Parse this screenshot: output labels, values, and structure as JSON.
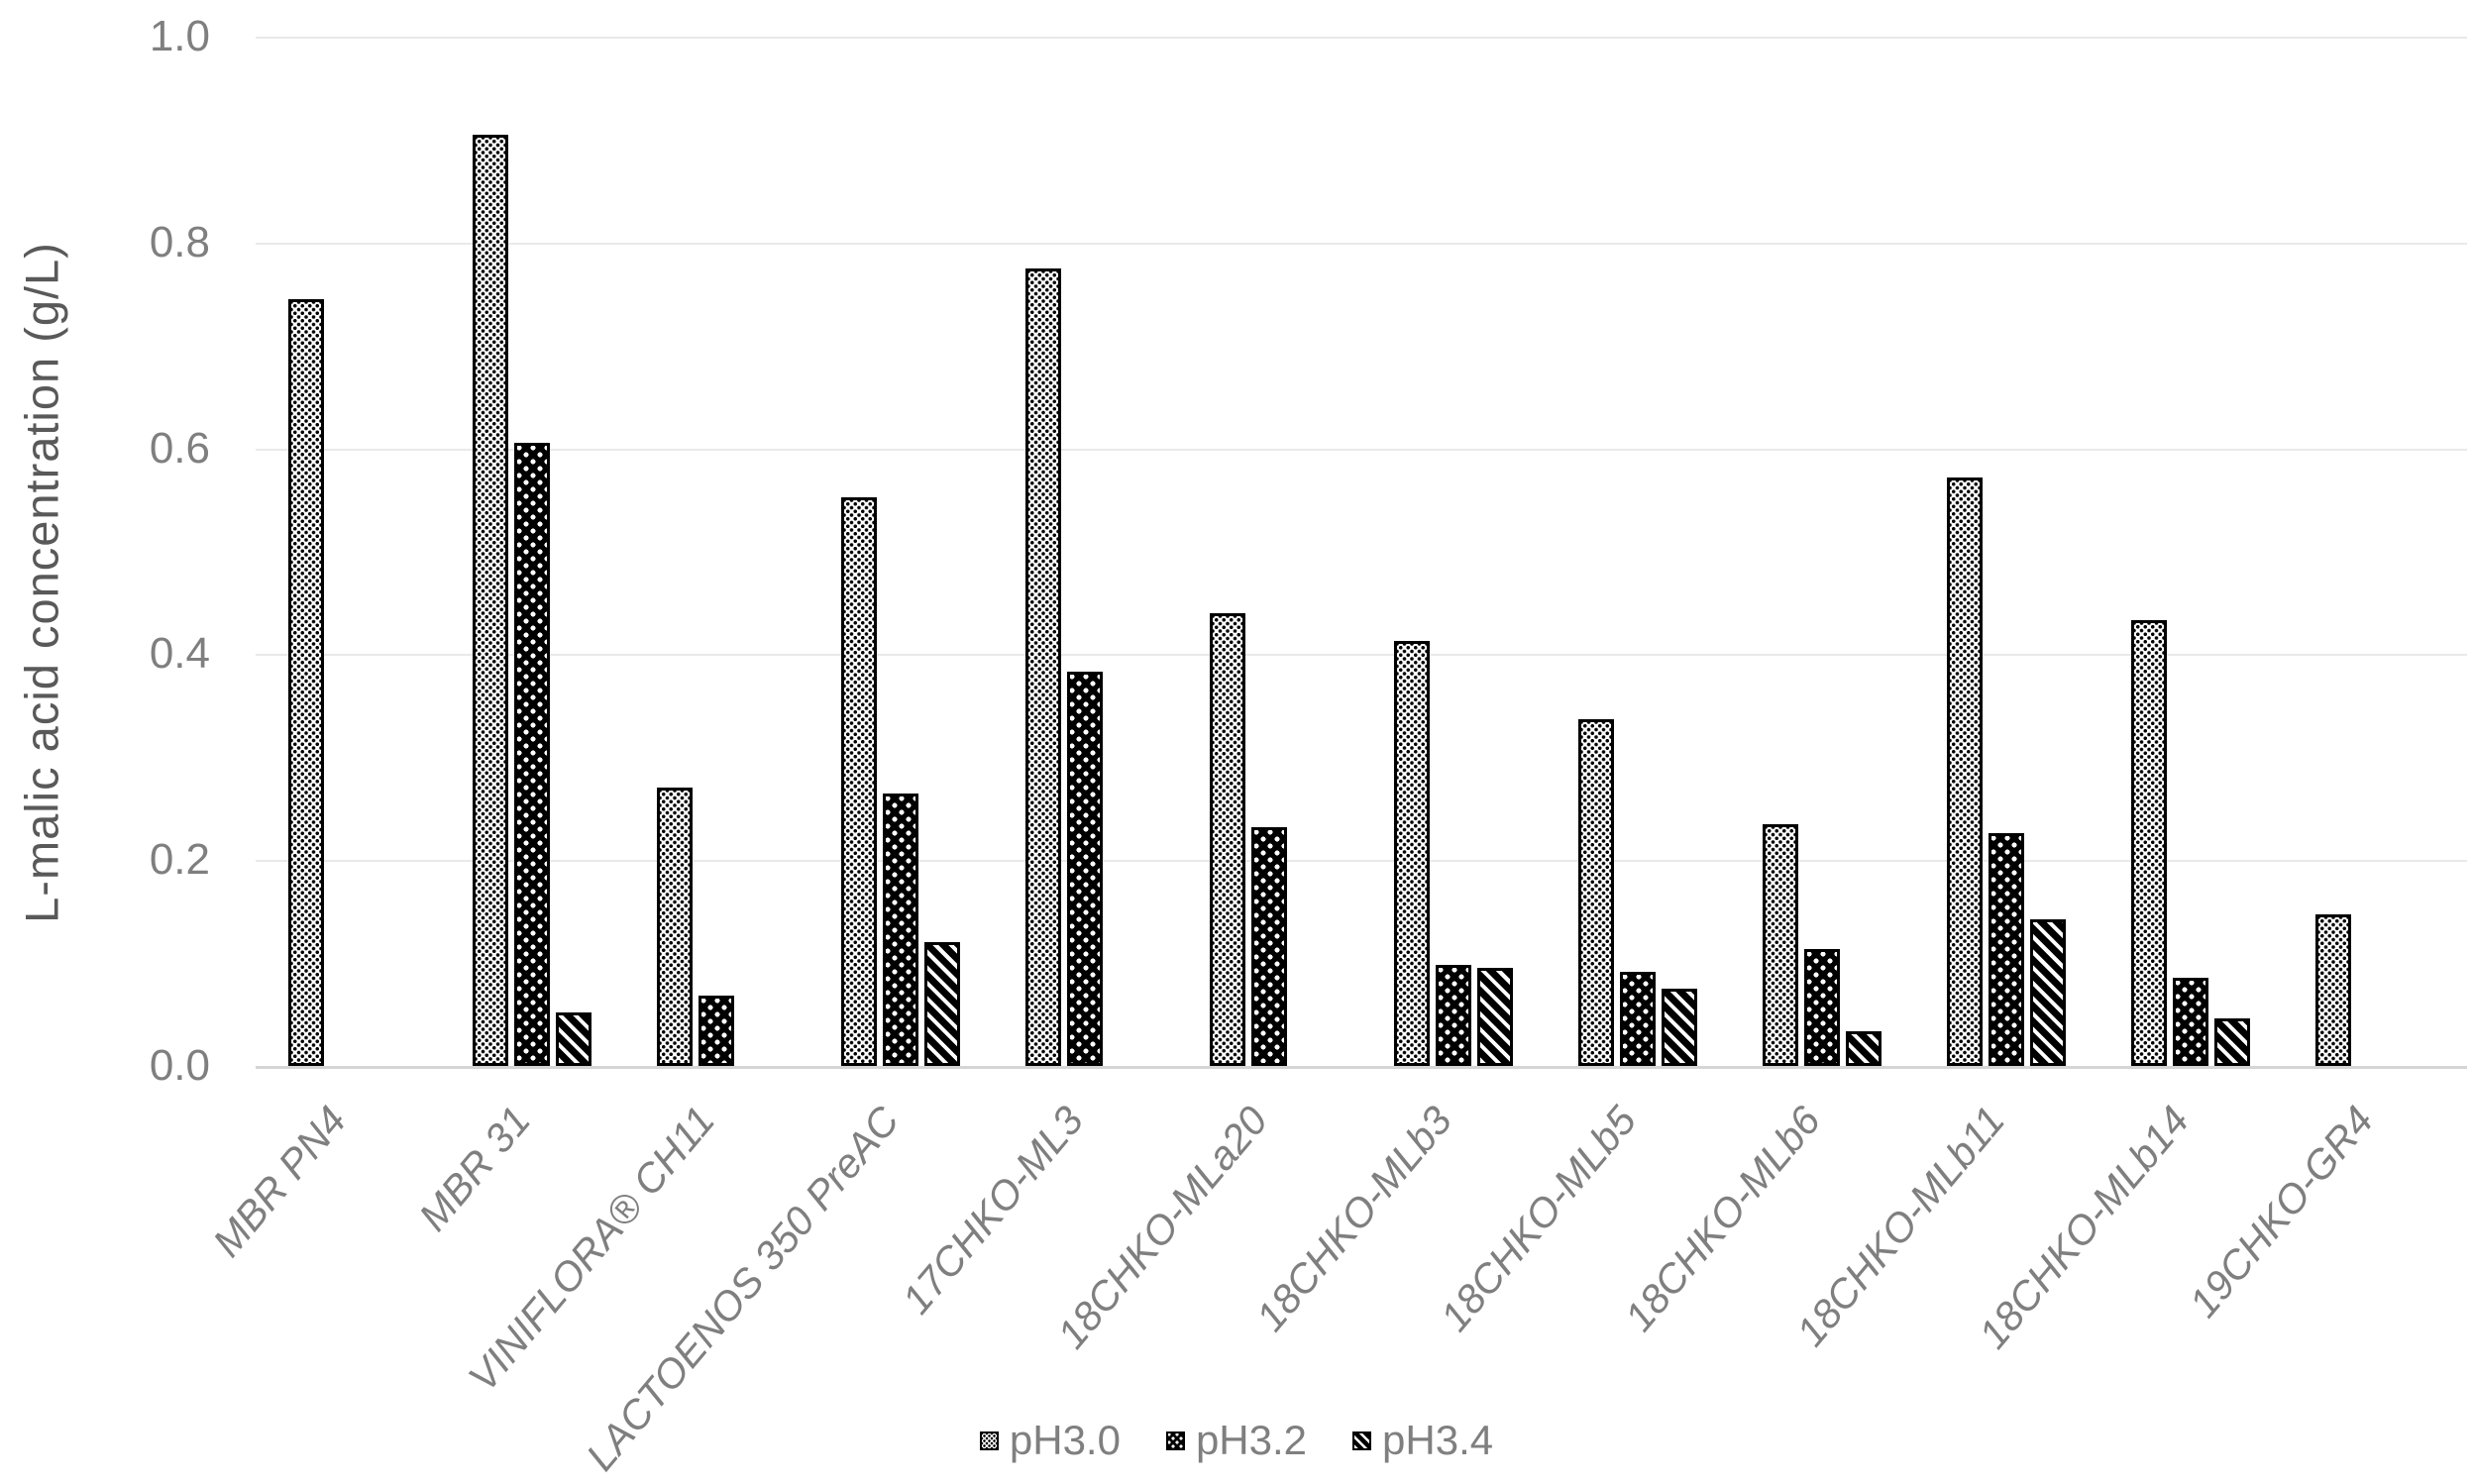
{
  "chart_data": {
    "type": "bar",
    "title": "",
    "xlabel": "",
    "ylabel": "L-malic acid concentration (g/L)",
    "ylim": [
      0,
      1.0
    ],
    "yticks": [
      0.0,
      0.2,
      0.4,
      0.6,
      0.8,
      1.0
    ],
    "ytick_labels": [
      "0.0",
      "0.2",
      "0.4",
      "0.6",
      "0.8",
      "1.0"
    ],
    "grid": "horizontal-light-gray",
    "legend_position": "bottom-center",
    "categories": [
      "MBR PN4",
      "MBR 31",
      "VINIFLORA® CH11",
      "LACTOENOS 350 PreAC",
      "17CHKO-ML3",
      "18CHKO-MLa20",
      "18CHKO-MLb3",
      "18CHKO-MLb5",
      "18CHKO-MLb6",
      "18CHKO-MLb11",
      "18CHKO-MLb14",
      "19CHKO-GR4"
    ],
    "series": [
      {
        "name": "pH3.0",
        "pattern": "black-dots-on-white",
        "values": [
          0.745,
          0.905,
          0.27,
          0.552,
          0.775,
          0.44,
          0.413,
          0.337,
          0.235,
          0.572,
          0.433,
          0.147
        ]
      },
      {
        "name": "pH3.2",
        "pattern": "white-dots-on-black",
        "values": [
          null,
          0.605,
          0.068,
          0.265,
          0.383,
          0.232,
          0.098,
          0.091,
          0.114,
          0.226,
          0.086,
          null
        ]
      },
      {
        "name": "pH3.4",
        "pattern": "white-diagonal-stripes-on-black",
        "values": [
          null,
          0.052,
          null,
          0.12,
          null,
          null,
          0.095,
          0.075,
          0.034,
          0.142,
          0.046,
          null
        ]
      }
    ],
    "colors": {
      "bar_fill_dark": "#000000",
      "bar_fill_light": "#ffffff",
      "tick_text": "#7f7f7f",
      "axis_title_text": "#595959",
      "category_text": "#7f7f7f",
      "legend_text": "#7f7f7f",
      "gridline": "#e9e9e9",
      "axis_line": "#d5d5d5",
      "background": "#ffffff"
    }
  }
}
